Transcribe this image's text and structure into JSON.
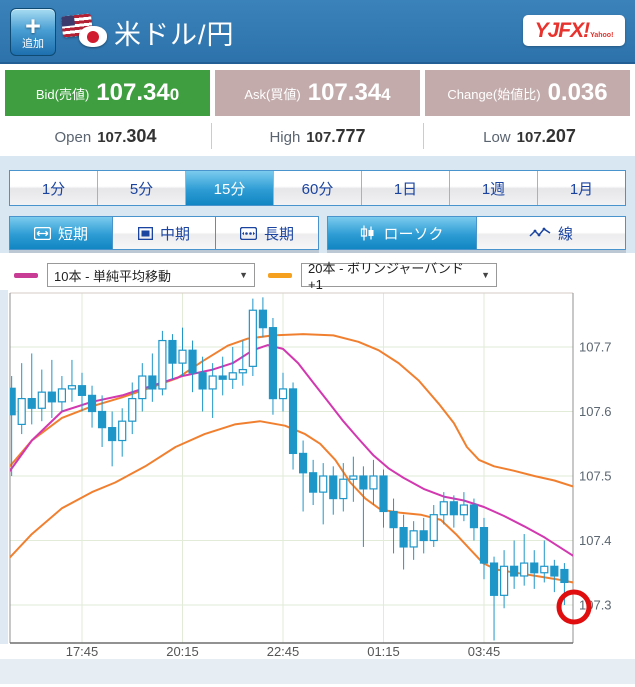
{
  "header": {
    "add_plus": "+",
    "add_label": "追加",
    "pair": "米ドル/円",
    "logo": "YJFX!",
    "logo_sub": "Yahoo!"
  },
  "quotes": {
    "bid": {
      "label": "Bid(売値)",
      "value": "107.340"
    },
    "ask": {
      "label": "Ask(買値)",
      "value": "107.344"
    },
    "change": {
      "label": "Change(始値比)",
      "value": "0.036"
    }
  },
  "ohl": {
    "open": {
      "label": "Open",
      "value": "107.304"
    },
    "high": {
      "label": "High",
      "value": "107.777"
    },
    "low": {
      "label": "Low",
      "value": "107.207"
    }
  },
  "timeframe_tabs": [
    {
      "label": "1分",
      "selected": false
    },
    {
      "label": "5分",
      "selected": false
    },
    {
      "label": "15分",
      "selected": true
    },
    {
      "label": "60分",
      "selected": false
    },
    {
      "label": "1日",
      "selected": false
    },
    {
      "label": "1週",
      "selected": false
    },
    {
      "label": "1月",
      "selected": false
    }
  ],
  "range_buttons": [
    {
      "label": "短期",
      "selected": true
    },
    {
      "label": "中期",
      "selected": false
    },
    {
      "label": "長期",
      "selected": false
    }
  ],
  "style_buttons": [
    {
      "label": "ローソク",
      "selected": true
    },
    {
      "label": "線",
      "selected": false
    }
  ],
  "indicators": [
    {
      "value": "10本 - 単純平均移動",
      "color": "#c83c96"
    },
    {
      "value": "20本 - ボリンジャーバンド+1",
      "color": "#f5a01e"
    }
  ],
  "colors": {
    "header_blue": "#3179b3",
    "bid_green": "#3f9e3f",
    "ask_mauve": "#c3abab",
    "accent_blue": "#4a94ce",
    "candle_blue": "#1e96c8",
    "sma_magenta": "#d238b0",
    "band_orange": "#f08030",
    "grid_green": "#e2ebd8",
    "axis_text": "#5b6670",
    "annotation_red": "#e00e0e"
  },
  "chart_data": {
    "type": "candlestick",
    "pair": "米ドル/円",
    "interval": "15分",
    "y_ticks": [
      {
        "label": "107.7",
        "value": 107.7
      },
      {
        "label": "107.6",
        "value": 107.6
      },
      {
        "label": "107.5",
        "value": 107.5
      },
      {
        "label": "107.4",
        "value": 107.4
      },
      {
        "label": "107.3",
        "value": 107.3
      }
    ],
    "y_range": [
      107.24,
      107.79
    ],
    "x_ticks": [
      {
        "label": "17:45",
        "i": 7
      },
      {
        "label": "20:15",
        "i": 17
      },
      {
        "label": "22:45",
        "i": 27
      },
      {
        "label": "01:15",
        "i": 37
      },
      {
        "label": "03:45",
        "i": 47
      }
    ],
    "candles": [
      [
        "16:00",
        107.636,
        107.655,
        107.5,
        107.595
      ],
      [
        "16:15",
        107.58,
        107.675,
        107.565,
        107.62
      ],
      [
        "16:30",
        107.62,
        107.69,
        107.58,
        107.605
      ],
      [
        "16:45",
        107.605,
        107.665,
        107.585,
        107.63
      ],
      [
        "17:00",
        107.63,
        107.68,
        107.59,
        107.615
      ],
      [
        "17:15",
        107.615,
        107.655,
        107.6,
        107.635
      ],
      [
        "17:30",
        107.635,
        107.68,
        107.615,
        107.64
      ],
      [
        "17:45",
        107.64,
        107.66,
        107.6,
        107.625
      ],
      [
        "18:00",
        107.625,
        107.64,
        107.575,
        107.6
      ],
      [
        "18:15",
        107.6,
        107.625,
        107.545,
        107.575
      ],
      [
        "18:30",
        107.575,
        107.6,
        107.515,
        107.555
      ],
      [
        "18:45",
        107.555,
        107.605,
        107.53,
        107.585
      ],
      [
        "19:00",
        107.585,
        107.645,
        107.565,
        107.62
      ],
      [
        "19:15",
        107.62,
        107.675,
        107.6,
        107.655
      ],
      [
        "19:30",
        107.655,
        107.69,
        107.615,
        107.635
      ],
      [
        "19:45",
        107.635,
        107.725,
        107.625,
        107.71
      ],
      [
        "20:00",
        107.71,
        107.72,
        107.65,
        107.675
      ],
      [
        "20:15",
        107.675,
        107.73,
        107.655,
        107.695
      ],
      [
        "20:30",
        107.695,
        107.71,
        107.63,
        107.66
      ],
      [
        "20:45",
        107.66,
        107.685,
        107.6,
        107.635
      ],
      [
        "21:00",
        107.635,
        107.675,
        107.59,
        107.655
      ],
      [
        "21:15",
        107.655,
        107.685,
        107.625,
        107.65
      ],
      [
        "21:30",
        107.65,
        107.7,
        107.635,
        107.66
      ],
      [
        "21:45",
        107.66,
        107.71,
        107.64,
        107.665
      ],
      [
        "22:00",
        107.67,
        107.775,
        107.655,
        107.757
      ],
      [
        "22:15",
        107.757,
        107.777,
        107.715,
        107.73
      ],
      [
        "22:30",
        107.73,
        107.745,
        107.595,
        107.62
      ],
      [
        "22:45",
        107.62,
        107.66,
        107.6,
        107.635
      ],
      [
        "23:00",
        107.635,
        107.645,
        107.51,
        107.535
      ],
      [
        "23:15",
        107.535,
        107.555,
        107.445,
        107.505
      ],
      [
        "23:30",
        107.505,
        107.525,
        107.455,
        107.475
      ],
      [
        "23:45",
        107.475,
        107.52,
        107.425,
        107.5
      ],
      [
        "00:00",
        107.5,
        107.515,
        107.44,
        107.465
      ],
      [
        "00:15",
        107.465,
        107.52,
        107.445,
        107.495
      ],
      [
        "00:30",
        107.495,
        107.53,
        107.46,
        107.5
      ],
      [
        "00:45",
        107.5,
        107.515,
        107.39,
        107.48
      ],
      [
        "01:00",
        107.48,
        107.525,
        107.455,
        107.5
      ],
      [
        "01:15",
        107.5,
        107.51,
        107.42,
        107.445
      ],
      [
        "01:30",
        107.445,
        107.465,
        107.38,
        107.42
      ],
      [
        "01:45",
        107.42,
        107.44,
        107.355,
        107.39
      ],
      [
        "02:00",
        107.39,
        107.43,
        107.37,
        107.415
      ],
      [
        "02:15",
        107.415,
        107.435,
        107.38,
        107.4
      ],
      [
        "02:30",
        107.4,
        107.455,
        107.39,
        107.44
      ],
      [
        "02:45",
        107.44,
        107.475,
        107.425,
        107.46
      ],
      [
        "03:00",
        107.46,
        107.47,
        107.42,
        107.44
      ],
      [
        "03:15",
        107.44,
        107.475,
        107.43,
        107.455
      ],
      [
        "03:30",
        107.455,
        107.465,
        107.4,
        107.42
      ],
      [
        "03:45",
        107.42,
        107.435,
        107.34,
        107.365
      ],
      [
        "04:00",
        107.365,
        107.375,
        107.245,
        107.315
      ],
      [
        "04:15",
        107.315,
        107.385,
        107.295,
        107.36
      ],
      [
        "04:30",
        107.36,
        107.4,
        107.325,
        107.345
      ],
      [
        "04:45",
        107.345,
        107.41,
        107.33,
        107.365
      ],
      [
        "05:00",
        107.365,
        107.385,
        107.325,
        107.35
      ],
      [
        "05:15",
        107.35,
        107.4,
        107.335,
        107.36
      ],
      [
        "05:30",
        107.36,
        107.37,
        107.32,
        107.345
      ],
      [
        "05:45",
        107.355,
        107.365,
        107.3,
        107.335
      ]
    ],
    "lines": {
      "sma10": {
        "name": "10本 - 単純平均移動",
        "points": [
          [
            -1,
            107.49
          ],
          [
            2,
            107.555
          ],
          [
            5,
            107.6
          ],
          [
            8,
            107.615
          ],
          [
            11,
            107.625
          ],
          [
            14,
            107.64
          ],
          [
            17,
            107.655
          ],
          [
            20,
            107.665
          ],
          [
            22,
            107.675
          ],
          [
            24,
            107.695
          ],
          [
            25.5,
            107.703
          ],
          [
            27,
            107.697
          ],
          [
            28.5,
            107.675
          ],
          [
            30,
            107.645
          ],
          [
            31.5,
            107.615
          ],
          [
            33,
            107.585
          ],
          [
            34.5,
            107.558
          ],
          [
            36,
            107.532
          ],
          [
            37.5,
            107.512
          ],
          [
            39,
            107.497
          ],
          [
            41,
            107.48
          ],
          [
            43,
            107.468
          ],
          [
            45,
            107.462
          ],
          [
            47,
            107.452
          ],
          [
            49,
            107.438
          ],
          [
            51,
            107.422
          ],
          [
            53,
            107.405
          ],
          [
            55,
            107.385
          ],
          [
            56.2,
            107.373
          ]
        ]
      },
      "bb_upper": {
        "name": "20本 - ボリンジャーバンド+1 上限",
        "points": [
          [
            -1,
            107.5
          ],
          [
            2,
            107.555
          ],
          [
            5,
            107.59
          ],
          [
            8,
            107.608
          ],
          [
            11,
            107.622
          ],
          [
            14,
            107.638
          ],
          [
            16.5,
            107.652
          ],
          [
            19,
            107.678
          ],
          [
            21.5,
            107.702
          ],
          [
            23.5,
            107.713
          ],
          [
            26,
            107.718
          ],
          [
            29,
            107.72
          ],
          [
            32,
            107.718
          ],
          [
            34.5,
            107.708
          ],
          [
            36.5,
            107.695
          ],
          [
            38.5,
            107.675
          ],
          [
            40.5,
            107.648
          ],
          [
            42.5,
            107.612
          ],
          [
            44,
            107.582
          ],
          [
            45.3,
            107.545
          ],
          [
            46.5,
            107.525
          ],
          [
            48,
            107.515
          ],
          [
            50,
            107.508
          ],
          [
            52,
            107.5
          ],
          [
            54,
            107.493
          ],
          [
            56.2,
            107.482
          ]
        ]
      },
      "bb_lower": {
        "name": "20本 - ボリンジャーバンド+1 下限",
        "points": [
          [
            -1,
            107.36
          ],
          [
            2,
            107.41
          ],
          [
            5,
            107.45
          ],
          [
            8,
            107.475
          ],
          [
            10.3,
            107.49
          ],
          [
            13.3,
            107.515
          ],
          [
            16.3,
            107.545
          ],
          [
            19.2,
            107.565
          ],
          [
            22.2,
            107.58
          ],
          [
            24.7,
            107.585
          ],
          [
            27.2,
            107.578
          ],
          [
            29.2,
            107.565
          ],
          [
            30.7,
            107.55
          ],
          [
            32.2,
            107.525
          ],
          [
            33.7,
            107.49
          ],
          [
            35.2,
            107.465
          ],
          [
            36.7,
            107.448
          ],
          [
            38.7,
            107.443
          ],
          [
            40.7,
            107.44
          ],
          [
            42.7,
            107.432
          ],
          [
            44.2,
            107.41
          ],
          [
            45.7,
            107.385
          ],
          [
            46.9,
            107.365
          ],
          [
            48.2,
            107.355
          ],
          [
            50.2,
            107.35
          ],
          [
            52.2,
            107.345
          ],
          [
            54.2,
            107.34
          ],
          [
            56.2,
            107.334
          ]
        ]
      }
    },
    "annotation": {
      "shape": "circle",
      "price": 107.3,
      "position": "right-edge"
    }
  }
}
